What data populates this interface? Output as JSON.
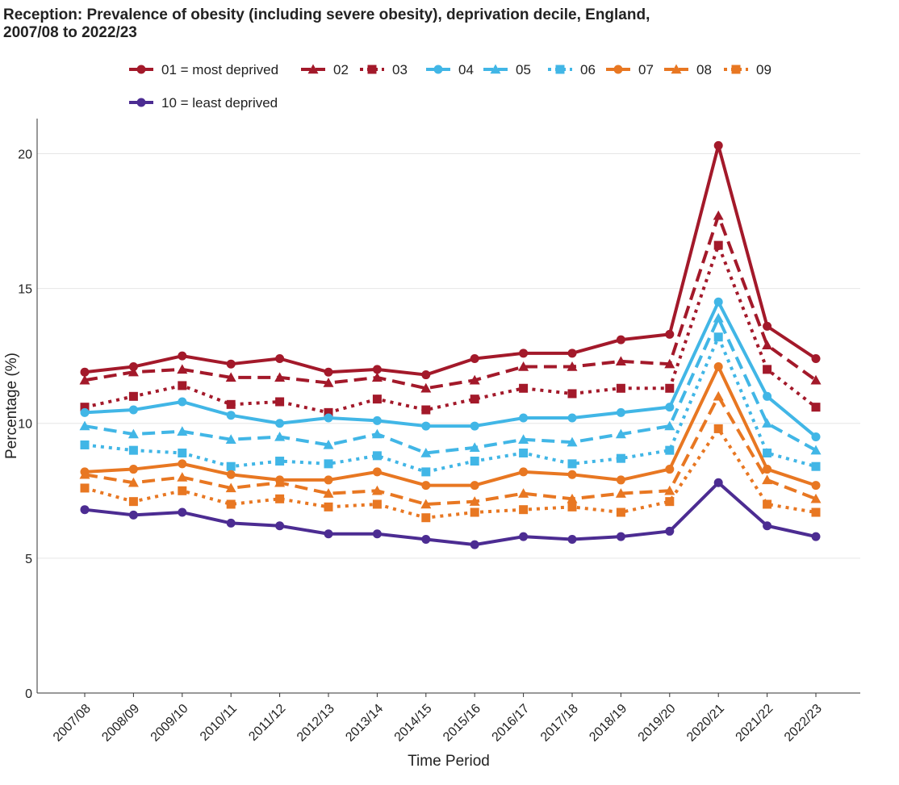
{
  "chart_data": {
    "type": "line",
    "title_line1": "Reception: Prevalence of obesity (including severe obesity), deprivation decile, England,",
    "title_line2": "2007/08 to 2022/23",
    "xlabel": "Time Period",
    "ylabel": "Percentage (%)",
    "ylim": [
      0,
      21.3
    ],
    "yticks": [
      0,
      5,
      10,
      15,
      20
    ],
    "grid": "horizontal",
    "legend_position": "top",
    "categories": [
      "2007/08",
      "2008/09",
      "2009/10",
      "2010/11",
      "2011/12",
      "2012/13",
      "2013/14",
      "2014/15",
      "2015/16",
      "2016/17",
      "2017/18",
      "2018/19",
      "2019/20",
      "2020/21",
      "2021/22",
      "2022/23"
    ],
    "series": [
      {
        "name": "01 = most deprived",
        "color": "#a3192a",
        "dash": "solid",
        "marker": "circle",
        "values": [
          11.9,
          12.1,
          12.5,
          12.2,
          12.4,
          11.9,
          12.0,
          11.8,
          12.4,
          12.6,
          12.6,
          13.1,
          13.3,
          20.3,
          13.6,
          12.4
        ]
      },
      {
        "name": "02",
        "color": "#a3192a",
        "dash": "dashed",
        "marker": "triangle",
        "values": [
          11.6,
          11.9,
          12.0,
          11.7,
          11.7,
          11.5,
          11.7,
          11.3,
          11.6,
          12.1,
          12.1,
          12.3,
          12.2,
          17.7,
          12.9,
          11.6
        ]
      },
      {
        "name": "03",
        "color": "#a3192a",
        "dash": "dotted",
        "marker": "square",
        "values": [
          10.6,
          11.0,
          11.4,
          10.7,
          10.8,
          10.4,
          10.9,
          10.5,
          10.9,
          11.3,
          11.1,
          11.3,
          11.3,
          16.6,
          12.0,
          10.6
        ]
      },
      {
        "name": "04",
        "color": "#41b6e6",
        "dash": "solid",
        "marker": "circle",
        "values": [
          10.4,
          10.5,
          10.8,
          10.3,
          10.0,
          10.2,
          10.1,
          9.9,
          9.9,
          10.2,
          10.2,
          10.4,
          10.6,
          14.5,
          11.0,
          9.5
        ]
      },
      {
        "name": "05",
        "color": "#41b6e6",
        "dash": "dashed",
        "marker": "triangle",
        "values": [
          9.9,
          9.6,
          9.7,
          9.4,
          9.5,
          9.2,
          9.6,
          8.9,
          9.1,
          9.4,
          9.3,
          9.6,
          9.9,
          13.9,
          10.0,
          9.0
        ]
      },
      {
        "name": "06",
        "color": "#41b6e6",
        "dash": "dotted",
        "marker": "square",
        "values": [
          9.2,
          9.0,
          8.9,
          8.4,
          8.6,
          8.5,
          8.8,
          8.2,
          8.6,
          8.9,
          8.5,
          8.7,
          9.0,
          13.2,
          8.9,
          8.4
        ]
      },
      {
        "name": "07",
        "color": "#e87722",
        "dash": "solid",
        "marker": "circle",
        "values": [
          8.2,
          8.3,
          8.5,
          8.1,
          7.9,
          7.9,
          8.2,
          7.7,
          7.7,
          8.2,
          8.1,
          7.9,
          8.3,
          12.1,
          8.3,
          7.7
        ]
      },
      {
        "name": "08",
        "color": "#e87722",
        "dash": "dashed",
        "marker": "triangle",
        "values": [
          8.1,
          7.8,
          8.0,
          7.6,
          7.8,
          7.4,
          7.5,
          7.0,
          7.1,
          7.4,
          7.2,
          7.4,
          7.5,
          11.0,
          7.9,
          7.2
        ]
      },
      {
        "name": "09",
        "color": "#e87722",
        "dash": "dotted",
        "marker": "square",
        "values": [
          7.6,
          7.1,
          7.5,
          7.0,
          7.2,
          6.9,
          7.0,
          6.5,
          6.7,
          6.8,
          6.9,
          6.7,
          7.1,
          9.8,
          7.0,
          6.7
        ]
      },
      {
        "name": "10 = least deprived",
        "color": "#4c2c92",
        "dash": "solid",
        "marker": "circle",
        "values": [
          6.8,
          6.6,
          6.7,
          6.3,
          6.2,
          5.9,
          5.9,
          5.7,
          5.5,
          5.8,
          5.7,
          5.8,
          6.0,
          7.8,
          6.2,
          5.8
        ]
      }
    ]
  }
}
